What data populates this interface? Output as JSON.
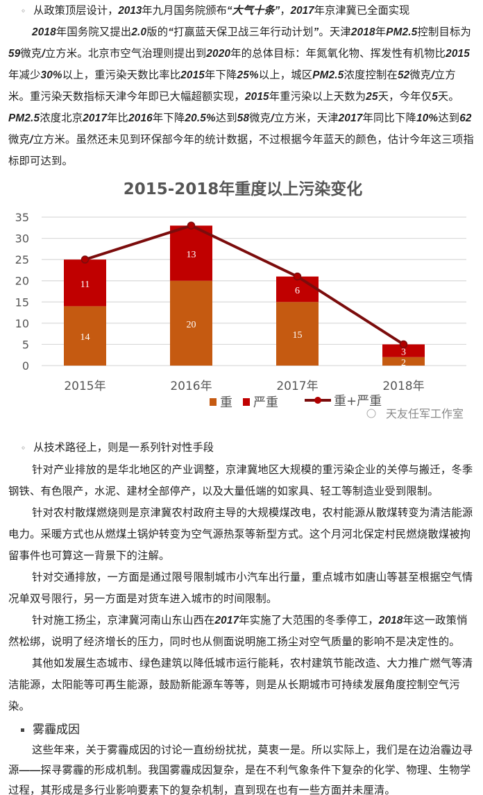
{
  "section1": {
    "bullet": "◦",
    "bullet_text": [
      {
        "t": "从政策顶层设计，"
      },
      {
        "t": "2013",
        "b": 1
      },
      {
        "t": "年九月国务院颁布"
      },
      {
        "t": "“大气十条”",
        "b": 1
      },
      {
        "t": "，"
      },
      {
        "t": "2017",
        "b": 1
      },
      {
        "t": "年京津冀已全面实现"
      }
    ],
    "paragraph": [
      {
        "t": "2018",
        "b": 1
      },
      {
        "t": "年国务院又提出"
      },
      {
        "t": "2.0",
        "b": 1
      },
      {
        "t": "版的"
      },
      {
        "t": "“",
        "b": 1
      },
      {
        "t": "打赢蓝天保卫战三年行动计划"
      },
      {
        "t": "”",
        "b": 1
      },
      {
        "t": "。天津"
      },
      {
        "t": "2018",
        "b": 1
      },
      {
        "t": "年"
      },
      {
        "t": "PM2.5",
        "b": 1
      },
      {
        "t": "控制目标为"
      },
      {
        "t": "59",
        "b": 1
      },
      {
        "t": "微克"
      },
      {
        "t": "/",
        "b": 1
      },
      {
        "t": "立方米。北京市空气治理则提出到"
      },
      {
        "t": "2020",
        "b": 1
      },
      {
        "t": "年的总体目标：年氮氧化物、挥发性有机物比"
      },
      {
        "t": "2015",
        "b": 1
      },
      {
        "t": "年减少"
      },
      {
        "t": "30%",
        "b": 1
      },
      {
        "t": "以上，重污染天数比率比"
      },
      {
        "t": "2015",
        "b": 1
      },
      {
        "t": "年下降"
      },
      {
        "t": "25%",
        "b": 1
      },
      {
        "t": "以上，城区"
      },
      {
        "t": "PM2.5",
        "b": 1
      },
      {
        "t": "浓度控制在"
      },
      {
        "t": "52",
        "b": 1
      },
      {
        "t": "微克"
      },
      {
        "t": "/",
        "b": 1
      },
      {
        "t": "立方米。重污染天数指标天津今年即已大幅超额实现，"
      },
      {
        "t": "2015",
        "b": 1
      },
      {
        "t": "年重污染以上天数为"
      },
      {
        "t": "25",
        "b": 1
      },
      {
        "t": "天，今年仅"
      },
      {
        "t": "5",
        "b": 1
      },
      {
        "t": "天。"
      },
      {
        "t": "PM2.5",
        "b": 1
      },
      {
        "t": "浓度北京"
      },
      {
        "t": "2017",
        "b": 1
      },
      {
        "t": "年比"
      },
      {
        "t": "2016",
        "b": 1
      },
      {
        "t": "年下降"
      },
      {
        "t": "20.5%",
        "b": 1
      },
      {
        "t": "达到"
      },
      {
        "t": "58",
        "b": 1
      },
      {
        "t": "微克"
      },
      {
        "t": "/",
        "b": 1
      },
      {
        "t": "立方米，天津"
      },
      {
        "t": "2017",
        "b": 1
      },
      {
        "t": "年同比下降"
      },
      {
        "t": "10%",
        "b": 1
      },
      {
        "t": "达到"
      },
      {
        "t": "62",
        "b": 1
      },
      {
        "t": "微克"
      },
      {
        "t": "/",
        "b": 1
      },
      {
        "t": "立方米。虽然还未见到环保部今年的统计数据，不过根据今年蓝天的颜色，估计今年这三项指标即可达到。"
      }
    ]
  },
  "chart_data": {
    "type": "bar",
    "stacked": true,
    "title": "2015-2018年重度以上污染变化",
    "categories": [
      "2015年",
      "2016年",
      "2017年",
      "2018年"
    ],
    "series": [
      {
        "name": "重",
        "values": [
          14,
          20,
          15,
          2
        ],
        "color": "#c55a11"
      },
      {
        "name": "严重",
        "values": [
          11,
          13,
          6,
          3
        ],
        "color": "#c00000"
      },
      {
        "name": "重+严重",
        "type": "line",
        "values": [
          25,
          33,
          21,
          5
        ],
        "color": "#7b0c0c"
      }
    ],
    "yticks": [
      0,
      5,
      10,
      15,
      20,
      25,
      30,
      35
    ],
    "ylim": [
      0,
      35
    ],
    "grid": true,
    "legend": "bottom",
    "watermark": "天友任军工作室"
  },
  "section2": {
    "bullet": "◦",
    "bullet_text": [
      {
        "t": "从技术路径上，则是一系列针对性手段"
      }
    ],
    "paragraphs": [
      [
        {
          "t": "针对产业排放的是华北地区的产业调整，京津冀地区大规模的重污染企业的关停与搬迁，冬季钢铁、有色限产，水泥、建材全部停产，以及大量低端的如家具、轻工等制造业受到限制。"
        }
      ],
      [
        {
          "t": "针对农村散煤燃烧则是京津冀农村政府主导的大规模煤改电，农村能源从散煤转变为清洁能源电力。采暖方式也从燃煤土锅炉转变为空气源热泵等新型方式。这个月河北保定村民燃烧散煤被拘留事件也可算这一背景下的注解。"
        }
      ],
      [
        {
          "t": "针对交通排放，一方面是通过限号限制城市小汽车出行量，重点城市如唐山等甚至根据空气情况单双号限行，另一方面是对货车进入城市的时间限制。"
        }
      ],
      [
        {
          "t": "针对施工扬尘，京津冀河南山东山西在"
        },
        {
          "t": "2017",
          "b": 1
        },
        {
          "t": "年实施了大范围的冬季停工，"
        },
        {
          "t": "2018",
          "b": 1
        },
        {
          "t": "年这一政策悄然松绑，说明了经济增长的压力，同时也从侧面说明施工扬尘对空气质量的影响不是决定性的。"
        }
      ],
      [
        {
          "t": "其他如发展生态城市、绿色建筑以降低城市运行能耗，农村建筑节能改造、大力推广燃气等清洁能源，太阳能等可再生能源，鼓励新能源车等等，则是从长期城市可持续发展角度控制空气污染。"
        }
      ]
    ]
  },
  "section3": {
    "heading": "雾霾成因",
    "paragraph": [
      {
        "t": "这些年来，关于雾霾成因的讨论一直纷纷扰扰，莫衷一是。所以实际上，我们是在边治霾边寻源"
      },
      {
        "t": "——",
        "b": 1
      },
      {
        "t": "探寻雾霾的形成机制。我国雾霾成因复杂，是在不利气象条件下复杂的化学、物理、生物学过程，其形成是多行业影响要素下的复杂机制，直到现在也有一些方面并未厘清。"
      }
    ]
  }
}
